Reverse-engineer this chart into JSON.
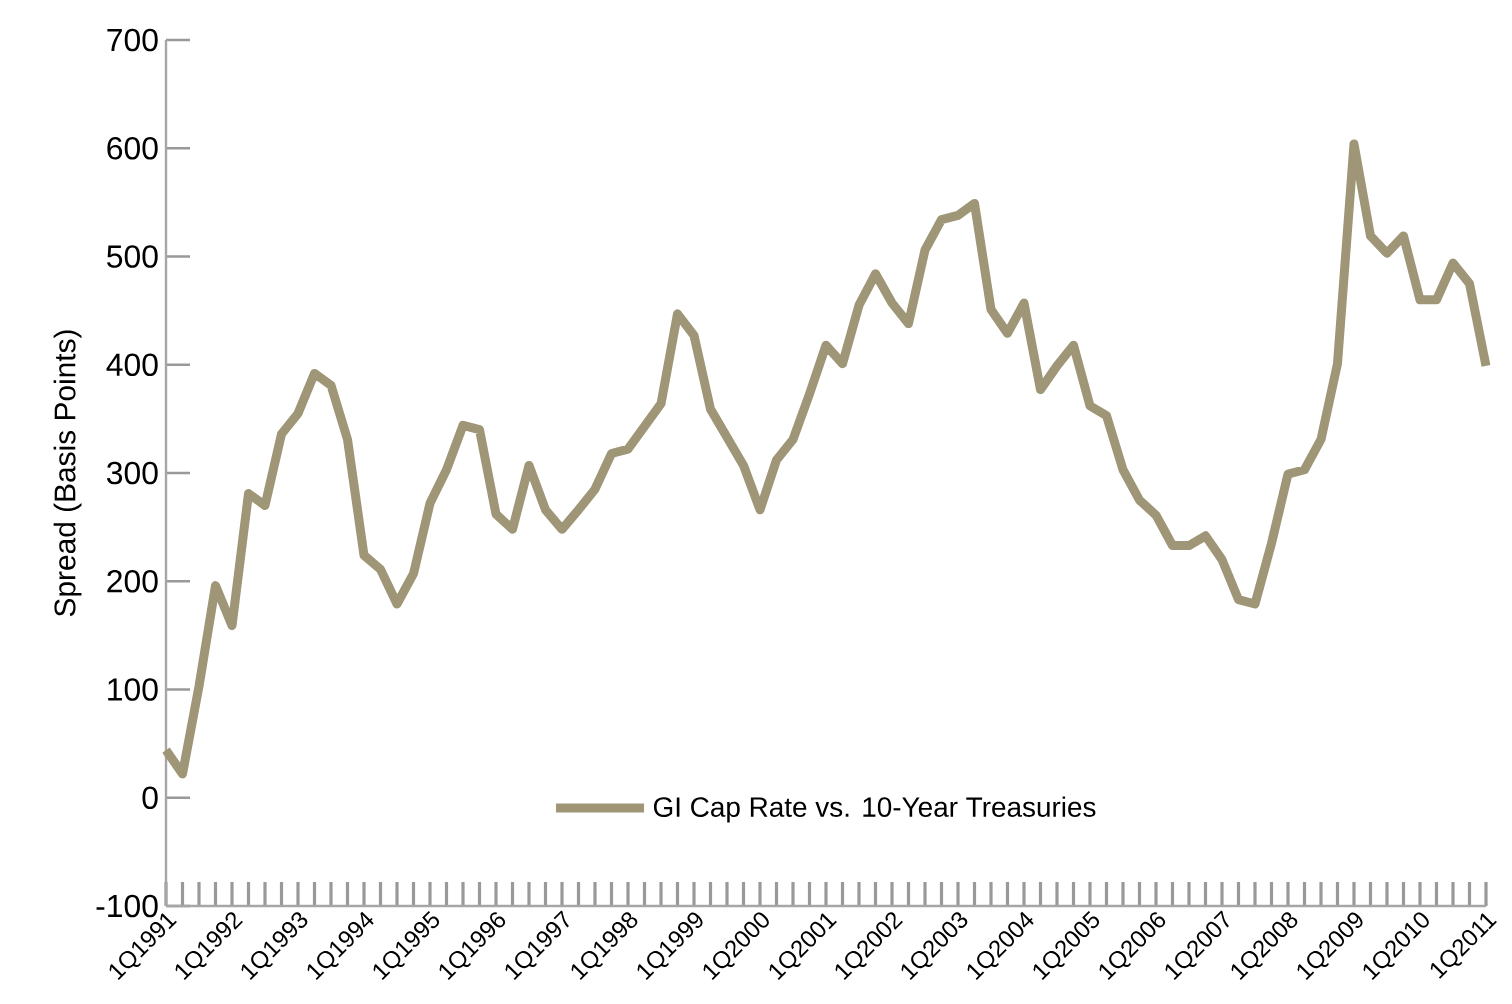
{
  "chart_data": {
    "type": "line",
    "ylabel": "Spread (Basis Points)",
    "categories": [
      "1Q1991",
      null,
      null,
      null,
      "1Q1992",
      null,
      null,
      null,
      "1Q1993",
      null,
      null,
      null,
      "1Q1994",
      null,
      null,
      null,
      "1Q1995",
      null,
      null,
      null,
      "1Q1996",
      null,
      null,
      null,
      "1Q1997",
      null,
      null,
      null,
      "1Q1998",
      null,
      null,
      null,
      "1Q1999",
      null,
      null,
      null,
      "1Q2000",
      null,
      null,
      null,
      "1Q2001",
      null,
      null,
      null,
      "1Q2002",
      null,
      null,
      null,
      "1Q2003",
      null,
      null,
      null,
      "1Q2004",
      null,
      null,
      null,
      "1Q2005",
      null,
      null,
      null,
      "1Q2006",
      null,
      null,
      null,
      "1Q2007",
      null,
      null,
      null,
      "1Q2008",
      null,
      null,
      null,
      "1Q2009",
      null,
      null,
      null,
      "1Q2010",
      null,
      null,
      null,
      "1Q2011"
    ],
    "ylim": [
      -100,
      700
    ],
    "yticks": [
      -100,
      0,
      100,
      200,
      300,
      400,
      500,
      600,
      700
    ],
    "legend": "bottom",
    "grid": false,
    "marker": "none",
    "line_style": "solid",
    "series": [
      {
        "name": "GI Cap Rate vs. 10-Year Treasuries",
        "color": "#9e9676",
        "values": [
          44,
          22,
          103,
          196,
          159,
          281,
          270,
          336,
          355,
          392,
          381,
          331,
          224,
          211,
          179,
          207,
          272,
          303,
          344,
          340,
          262,
          248,
          307,
          266,
          248,
          266,
          285,
          318,
          322,
          343,
          364,
          447,
          427,
          359,
          333,
          307,
          266,
          312,
          331,
          373,
          418,
          401,
          455,
          484,
          457,
          438,
          506,
          534,
          538,
          549,
          451,
          429,
          457,
          377,
          399,
          418,
          362,
          353,
          303,
          275,
          261,
          233,
          233,
          242,
          220,
          183,
          179,
          235,
          299,
          303,
          331,
          401,
          604,
          519,
          503,
          519,
          460,
          460,
          494,
          475,
          399
        ]
      }
    ]
  }
}
